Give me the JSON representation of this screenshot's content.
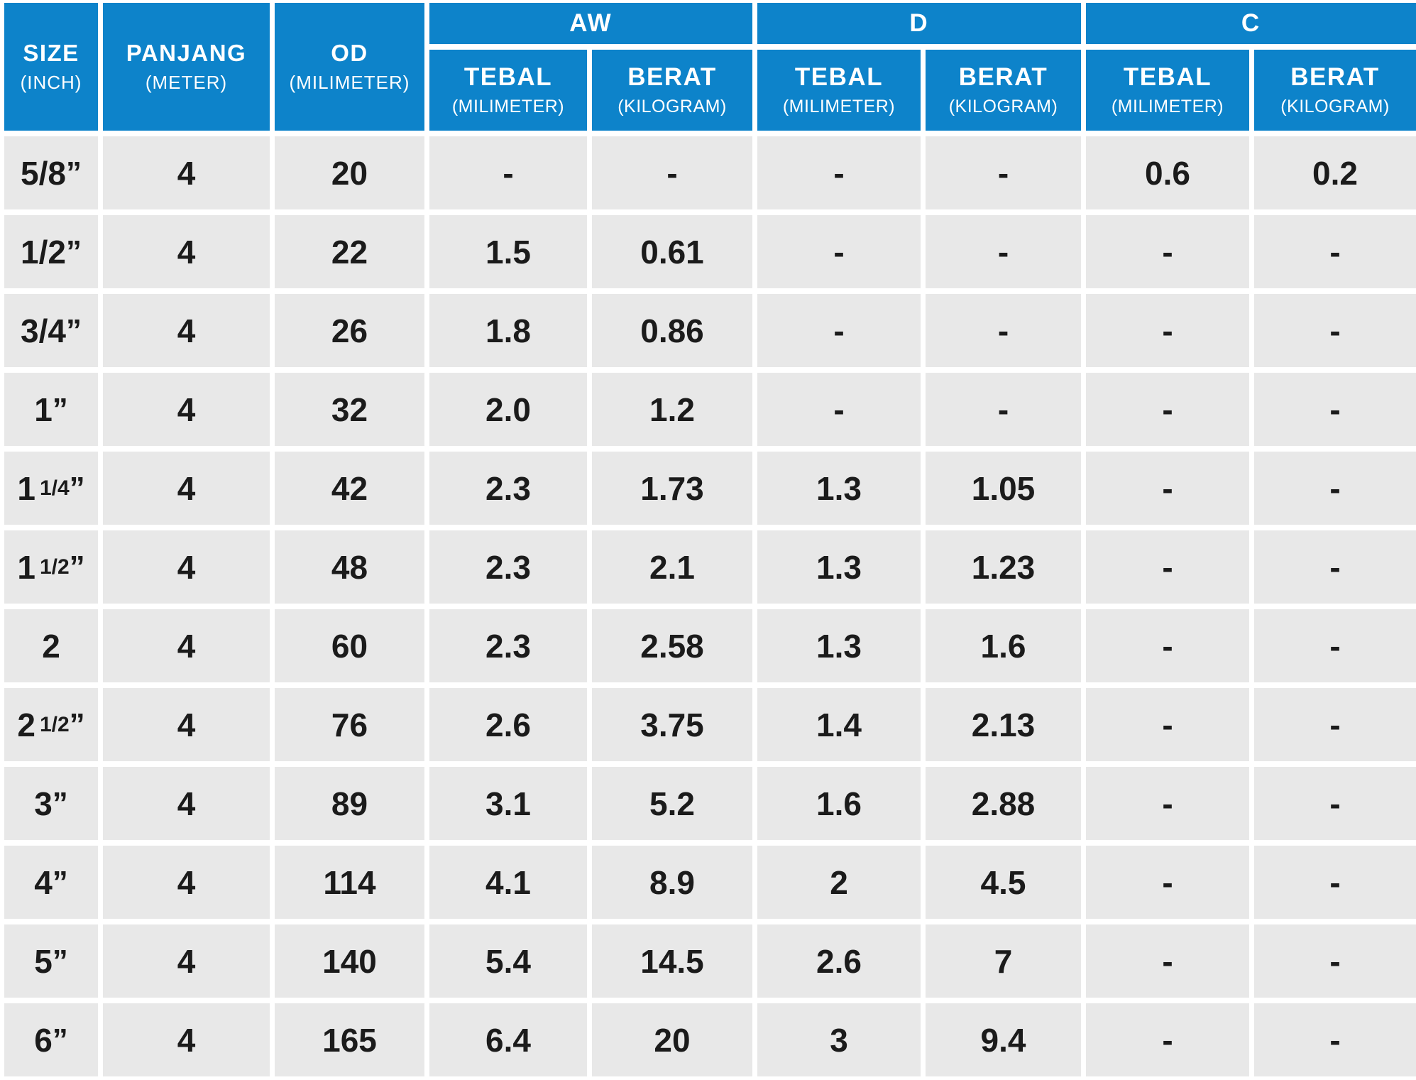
{
  "colors": {
    "header_blue": "#0d83ca",
    "row_gray": "#e8e8e8",
    "text_dark": "#1b1b1b",
    "header_text": "#ffffff"
  },
  "table": {
    "columns": {
      "size": {
        "label": "SIZE",
        "unit": "(INCH)"
      },
      "panjang": {
        "label": "PANJANG",
        "unit": "(METER)"
      },
      "od": {
        "label": "OD",
        "unit": "(MILIMETER)"
      },
      "groups": [
        {
          "label": "AW",
          "subs": [
            {
              "label": "TEBAL",
              "unit": "(MILIMETER)"
            },
            {
              "label": "BERAT",
              "unit": "(KILOGRAM)"
            }
          ]
        },
        {
          "label": "D",
          "subs": [
            {
              "label": "TEBAL",
              "unit": "(MILIMETER)"
            },
            {
              "label": "BERAT",
              "unit": "(KILOGRAM)"
            }
          ]
        },
        {
          "label": "C",
          "subs": [
            {
              "label": "TEBAL",
              "unit": "(MILIMETER)"
            },
            {
              "label": "BERAT",
              "unit": "(KILOGRAM)"
            }
          ]
        }
      ]
    },
    "rows": [
      {
        "size": {
          "main": "5/8",
          "frac": "",
          "quote": "”"
        },
        "values": [
          "4",
          "20",
          "-",
          "-",
          "-",
          "-",
          "0.6",
          "0.2"
        ]
      },
      {
        "size": {
          "main": "1/2",
          "frac": "",
          "quote": "”"
        },
        "values": [
          "4",
          "22",
          "1.5",
          "0.61",
          "-",
          "-",
          "-",
          "-"
        ]
      },
      {
        "size": {
          "main": "3/4",
          "frac": "",
          "quote": "”"
        },
        "values": [
          "4",
          "26",
          "1.8",
          "0.86",
          "-",
          "-",
          "-",
          "-"
        ]
      },
      {
        "size": {
          "main": "1",
          "frac": "",
          "quote": "”"
        },
        "values": [
          "4",
          "32",
          "2.0",
          "1.2",
          "-",
          "-",
          "-",
          "-"
        ]
      },
      {
        "size": {
          "main": "1",
          "frac": "1/4",
          "quote": "”"
        },
        "values": [
          "4",
          "42",
          "2.3",
          "1.73",
          "1.3",
          "1.05",
          "-",
          "-"
        ]
      },
      {
        "size": {
          "main": "1",
          "frac": "1/2",
          "quote": "”"
        },
        "values": [
          "4",
          "48",
          "2.3",
          "2.1",
          "1.3",
          "1.23",
          "-",
          "-"
        ]
      },
      {
        "size": {
          "main": "2",
          "frac": "",
          "quote": ""
        },
        "values": [
          "4",
          "60",
          "2.3",
          "2.58",
          "1.3",
          "1.6",
          "-",
          "-"
        ]
      },
      {
        "size": {
          "main": "2",
          "frac": "1/2",
          "quote": "”"
        },
        "values": [
          "4",
          "76",
          "2.6",
          "3.75",
          "1.4",
          "2.13",
          "-",
          "-"
        ]
      },
      {
        "size": {
          "main": "3",
          "frac": "",
          "quote": "”"
        },
        "values": [
          "4",
          "89",
          "3.1",
          "5.2",
          "1.6",
          "2.88",
          "-",
          "-"
        ]
      },
      {
        "size": {
          "main": "4",
          "frac": "",
          "quote": "”"
        },
        "values": [
          "4",
          "114",
          "4.1",
          "8.9",
          "2",
          "4.5",
          "-",
          "-"
        ]
      },
      {
        "size": {
          "main": "5",
          "frac": "",
          "quote": "”"
        },
        "values": [
          "4",
          "140",
          "5.4",
          "14.5",
          "2.6",
          "7",
          "-",
          "-"
        ]
      },
      {
        "size": {
          "main": "6",
          "frac": "",
          "quote": "”"
        },
        "values": [
          "4",
          "165",
          "6.4",
          "20",
          "3",
          "9.4",
          "-",
          "-"
        ]
      }
    ]
  }
}
